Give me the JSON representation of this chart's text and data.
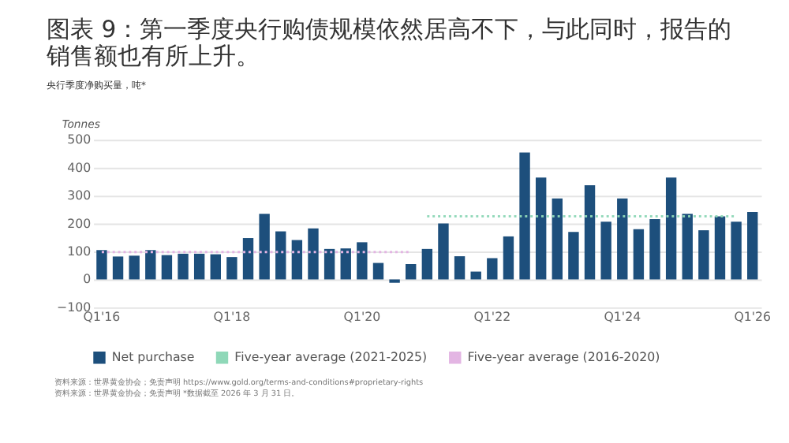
{
  "chart_data": {
    "type": "bar",
    "title": "图表 9：第一季度央行购债规模依然居高不下，与此同时，报告的销售额也有所上升。",
    "subtitle": "央行季度净购买量，吨*",
    "ylabel": "Tonnes",
    "categories": [
      "Q1'16",
      null,
      null,
      null,
      null,
      null,
      null,
      null,
      "Q1'18",
      null,
      null,
      null,
      null,
      null,
      null,
      null,
      "Q1'20",
      null,
      null,
      null,
      null,
      null,
      null,
      null,
      "Q1'22",
      null,
      null,
      null,
      null,
      null,
      null,
      null,
      "Q1'24",
      null,
      null,
      null,
      null,
      null,
      null,
      null,
      "Q1'26"
    ],
    "series": [
      {
        "name": "Net purchase",
        "color": "#1d4f7c",
        "values": [
          105,
          82,
          85,
          105,
          87,
          92,
          92,
          90,
          80,
          148,
          235,
          172,
          141,
          183,
          109,
          111,
          133,
          59,
          -12,
          55,
          109,
          200,
          83,
          28,
          76,
          154,
          454,
          365,
          290,
          170,
          337,
          207,
          290,
          180,
          216,
          365,
          235,
          176,
          226,
          207,
          241
        ]
      },
      {
        "name": "Five-year average (2021-2025)",
        "type": "line",
        "line_style": "dotted",
        "color": "#8fd8b8",
        "values": [
          null,
          null,
          null,
          null,
          null,
          null,
          null,
          null,
          null,
          null,
          null,
          null,
          null,
          null,
          null,
          null,
          null,
          null,
          null,
          null,
          226,
          226,
          226,
          226,
          226,
          226,
          226,
          226,
          226,
          226,
          226,
          226,
          226,
          226,
          226,
          226,
          226,
          226,
          226,
          226,
          null
        ]
      },
      {
        "name": "Five-year average (2016-2020)",
        "type": "line",
        "line_style": "dotted",
        "color": "#e3b5e3",
        "values": [
          98,
          98,
          98,
          98,
          98,
          98,
          98,
          98,
          98,
          98,
          98,
          98,
          98,
          98,
          98,
          98,
          98,
          98,
          98,
          98,
          null,
          null,
          null,
          null,
          null,
          null,
          null,
          null,
          null,
          null,
          null,
          null,
          null,
          null,
          null,
          null,
          null,
          null,
          null,
          null,
          null
        ]
      }
    ],
    "ylim": [
      -100,
      500
    ],
    "yticks": [
      -100,
      0,
      100,
      200,
      300,
      400,
      500
    ],
    "grid": "y",
    "legend": "bottom",
    "annotations": [
      "资料来源：世界黄金协会；免责声明 https://www.gold.org/terms-and-conditions#proprietary-rights",
      "资料来源：世界黄金协会；免责声明 *数据截至 2026 年 3 月 31 日。"
    ]
  }
}
